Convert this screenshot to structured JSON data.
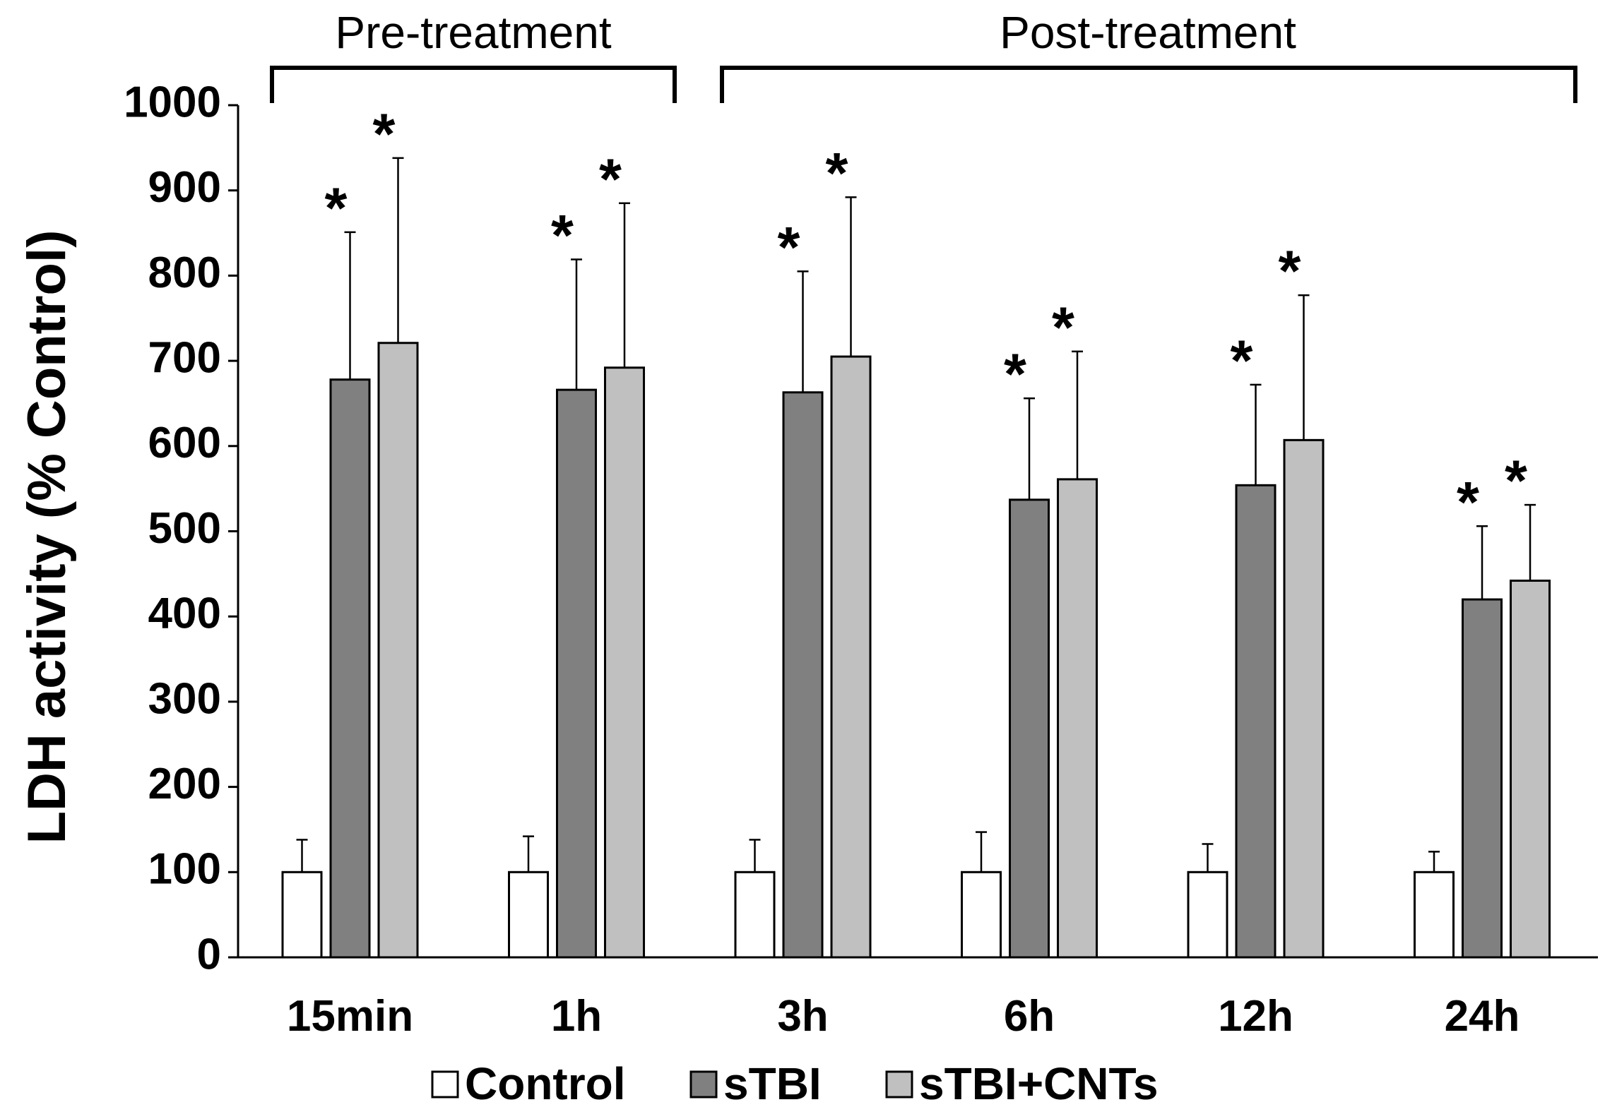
{
  "chart_data": {
    "type": "bar",
    "title": "",
    "xlabel": "",
    "ylabel": "LDH activity (% Control)",
    "ylim": [
      0,
      1000
    ],
    "yticks": [
      0,
      100,
      200,
      300,
      400,
      500,
      600,
      700,
      800,
      900,
      1000
    ],
    "categories": [
      "15min",
      "1h",
      "3h",
      "6h",
      "12h",
      "24h"
    ],
    "series": [
      {
        "name": "Control",
        "color": "#ffffff",
        "values": [
          100,
          100,
          100,
          100,
          100,
          100
        ],
        "errors": [
          38,
          42,
          38,
          47,
          33,
          24
        ],
        "significant": [
          false,
          false,
          false,
          false,
          false,
          false
        ]
      },
      {
        "name": "sTBI",
        "color": "#808080",
        "values": [
          678,
          666,
          663,
          537,
          554,
          420
        ],
        "errors": [
          173,
          153,
          142,
          119,
          118,
          86
        ],
        "significant": [
          true,
          true,
          true,
          true,
          true,
          true
        ]
      },
      {
        "name": "sTBI+CNTs",
        "color": "#c0c0c0",
        "values": [
          721,
          692,
          705,
          561,
          607,
          442
        ],
        "errors": [
          217,
          193,
          187,
          150,
          170,
          89
        ],
        "significant": [
          true,
          true,
          true,
          true,
          true,
          true
        ]
      }
    ],
    "significance_marker": "*",
    "groups": [
      {
        "label": "Pre-treatment",
        "categories": [
          "15min",
          "1h"
        ]
      },
      {
        "label": "Post-treatment",
        "categories": [
          "3h",
          "6h",
          "12h",
          "24h"
        ]
      }
    ],
    "legend_position": "bottom"
  }
}
